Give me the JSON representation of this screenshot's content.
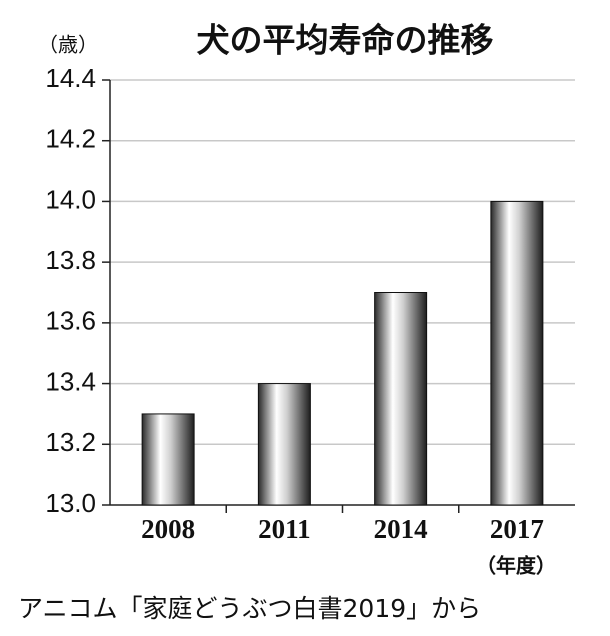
{
  "chart_data": {
    "type": "bar",
    "title": "犬の平均寿命の推移",
    "y_unit": "（歳）",
    "x_unit": "（年度）",
    "source": "アニコム「家庭どうぶつ白書2019」から",
    "categories": [
      "2008",
      "2011",
      "2014",
      "2017"
    ],
    "values": [
      13.3,
      13.4,
      13.7,
      14.0
    ],
    "ylim": [
      13.0,
      14.4
    ],
    "yticks": [
      {
        "value": 13.0,
        "label": "13.0"
      },
      13.2,
      13.4,
      13.6,
      13.8,
      {
        "value": 14.0,
        "label": "14.0"
      },
      14.2,
      14.4
    ],
    "grid": true
  }
}
